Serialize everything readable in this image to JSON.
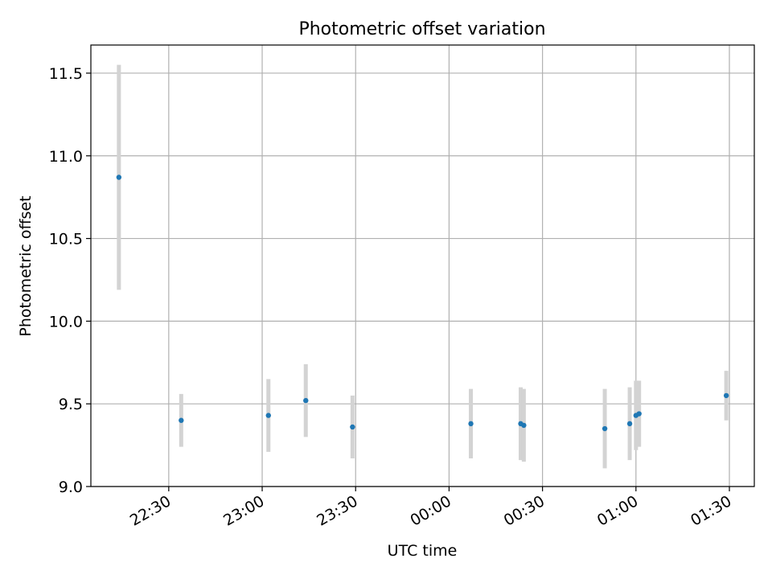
{
  "chart_data": {
    "type": "scatter",
    "title": "Photometric offset variation",
    "xlabel": "UTC time",
    "ylabel": "Photometric offset",
    "x_ticks": [
      "22:30",
      "23:00",
      "23:30",
      "00:00",
      "00:30",
      "01:00",
      "01:30"
    ],
    "y_ticks": [
      "9.0",
      "9.5",
      "10.0",
      "10.5",
      "11.0",
      "11.5"
    ],
    "xlim": [
      "22:05",
      "01:38"
    ],
    "ylim": [
      9.0,
      11.67
    ],
    "grid": true,
    "points": [
      {
        "x": "22:14",
        "y": 10.87,
        "err": 0.68
      },
      {
        "x": "22:34",
        "y": 9.4,
        "err": 0.16
      },
      {
        "x": "23:02",
        "y": 9.43,
        "err": 0.22
      },
      {
        "x": "23:14",
        "y": 9.52,
        "err": 0.22
      },
      {
        "x": "23:29",
        "y": 9.36,
        "err": 0.19
      },
      {
        "x": "00:07",
        "y": 9.38,
        "err": 0.21
      },
      {
        "x": "00:23",
        "y": 9.38,
        "err": 0.22
      },
      {
        "x": "00:24",
        "y": 9.37,
        "err": 0.22
      },
      {
        "x": "00:50",
        "y": 9.35,
        "err": 0.24
      },
      {
        "x": "00:58",
        "y": 9.38,
        "err": 0.22
      },
      {
        "x": "01:00",
        "y": 9.43,
        "err": 0.21
      },
      {
        "x": "01:01",
        "y": 9.44,
        "err": 0.2
      },
      {
        "x": "01:29",
        "y": 9.55,
        "err": 0.15
      }
    ],
    "colors": {
      "marker": "#1f77b4",
      "errorbar": "#d3d3d3",
      "grid": "#b0b0b0"
    }
  }
}
